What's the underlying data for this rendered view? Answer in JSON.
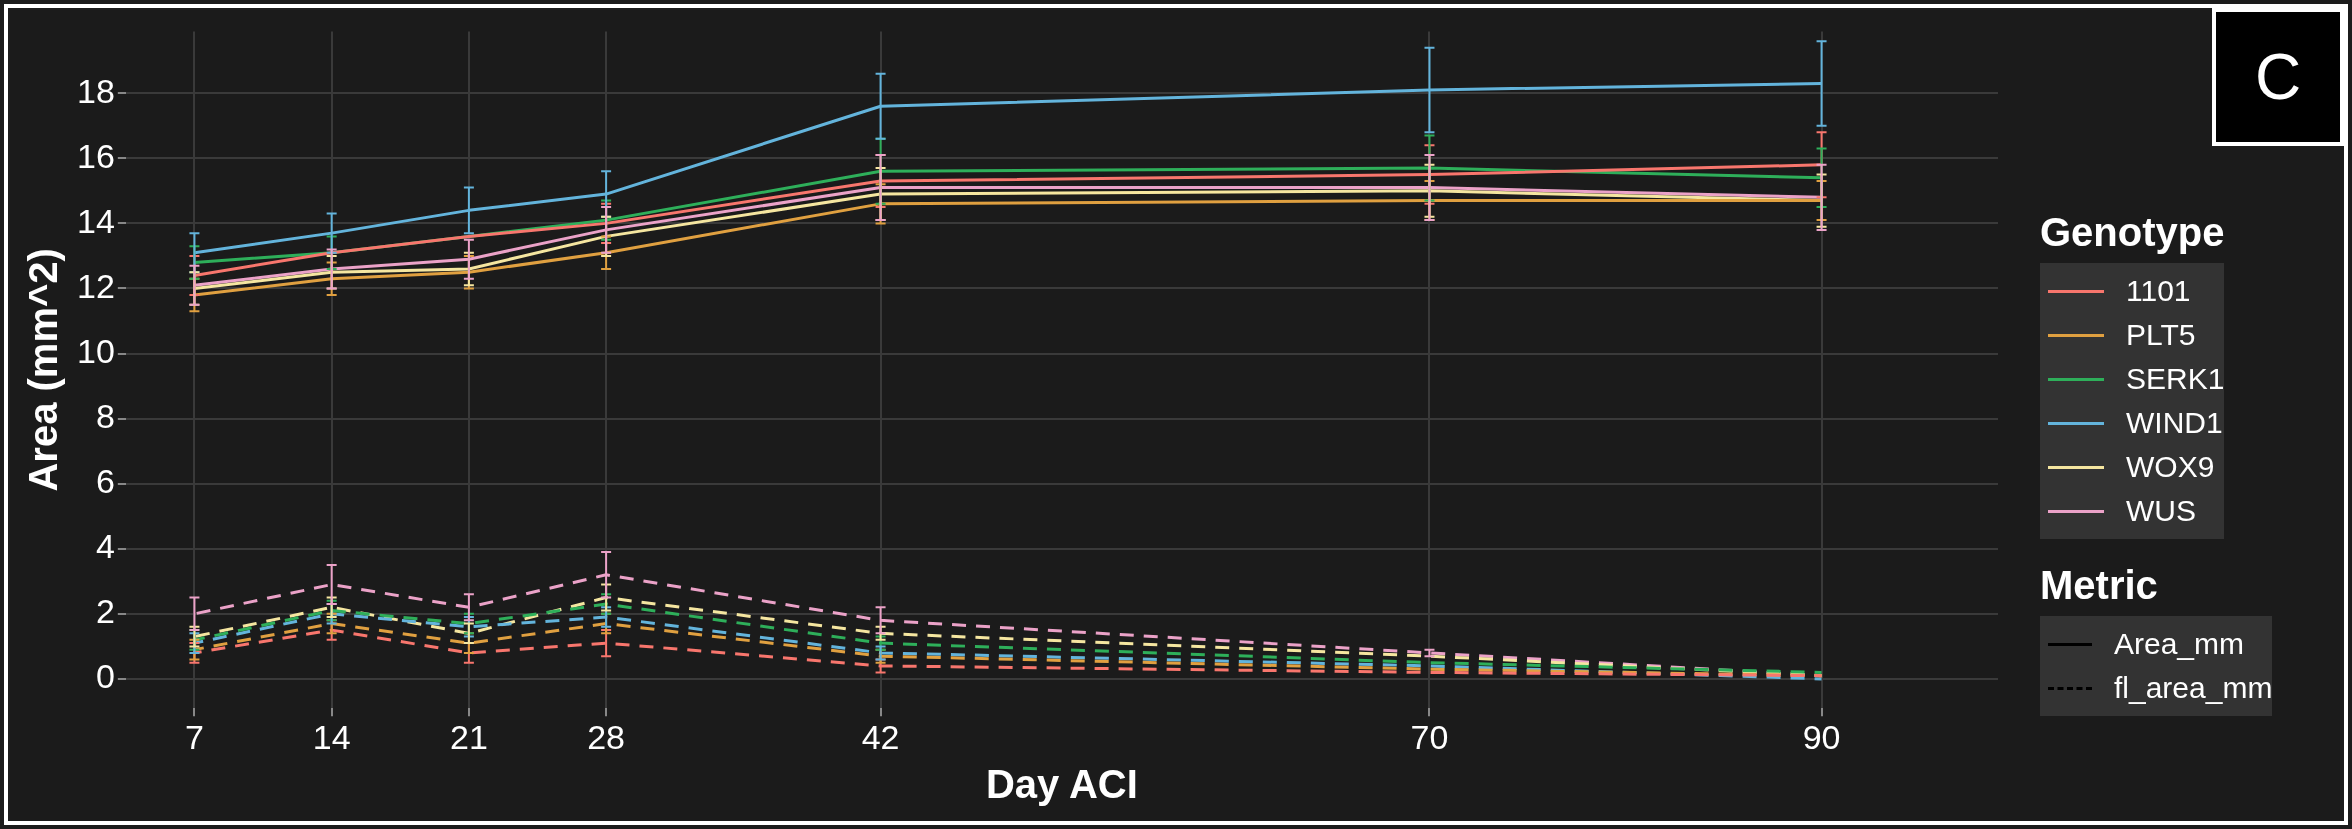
{
  "chart_data": {
    "type": "line",
    "xlabel": "Day ACI",
    "ylabel": "Area (mm^2)",
    "legend_title": "Genotype",
    "legend": "right",
    "grid": true,
    "marker": "none",
    "x": [
      7,
      14,
      21,
      28,
      42,
      70,
      90
    ],
    "xlim": [
      3.5,
      99
    ],
    "xticks": [
      7,
      14,
      21,
      28,
      42,
      70,
      90
    ],
    "ylim": [
      -0.9,
      19.9
    ],
    "yticks": [
      0,
      2,
      4,
      6,
      8,
      10,
      12,
      14,
      16,
      18
    ],
    "annotations": [
      "C",
      "Metric",
      "Area_mm",
      "fl_area_mm"
    ],
    "series": [
      {
        "name": "1101",
        "color": "#f8766d",
        "line_style": "solid",
        "values": [
          12.4,
          13.1,
          13.6,
          14.0,
          15.3,
          15.5,
          15.8
        ],
        "errors": [
          0.6,
          null,
          null,
          0.6,
          0.8,
          0.9,
          1.0
        ]
      },
      {
        "name": "PLT5",
        "color": "#e0a040",
        "line_style": "solid",
        "values": [
          11.8,
          12.3,
          12.5,
          13.1,
          14.6,
          14.7,
          14.7
        ],
        "errors": [
          0.5,
          0.5,
          0.5,
          0.5,
          0.6,
          0.6,
          0.6
        ]
      },
      {
        "name": "SERK1",
        "color": "#2eaf5a",
        "line_style": "solid",
        "values": [
          12.8,
          13.1,
          13.6,
          14.1,
          15.6,
          15.7,
          15.4
        ],
        "errors": [
          0.5,
          0.5,
          null,
          0.6,
          1.0,
          1.0,
          0.9
        ]
      },
      {
        "name": "WIND1",
        "color": "#63b4dc",
        "line_style": "solid",
        "values": [
          13.1,
          13.7,
          14.4,
          14.9,
          17.6,
          18.1,
          18.3
        ],
        "errors": [
          0.6,
          0.6,
          0.7,
          0.7,
          1.0,
          1.3,
          1.3
        ]
      },
      {
        "name": "WOX9",
        "color": "#f5e6a0",
        "line_style": "solid",
        "values": [
          12.0,
          12.5,
          12.6,
          13.6,
          14.9,
          15.0,
          14.7
        ],
        "errors": [
          0.5,
          0.5,
          0.5,
          0.6,
          0.8,
          0.8,
          0.8
        ]
      },
      {
        "name": "WUS",
        "color": "#eba2c8",
        "line_style": "solid",
        "values": [
          12.1,
          12.6,
          12.9,
          13.8,
          15.1,
          15.1,
          14.8
        ],
        "errors": [
          0.6,
          0.6,
          0.6,
          0.7,
          1.0,
          1.0,
          1.0
        ]
      },
      {
        "color": "#f8766d",
        "line_style": "dashed",
        "values": [
          0.8,
          1.5,
          0.8,
          1.1,
          0.4,
          0.2,
          0.1
        ],
        "errors": [
          0.3,
          0.3,
          0.3,
          0.4,
          0.2,
          null,
          null
        ]
      },
      {
        "color": "#e0a040",
        "line_style": "dashed",
        "values": [
          0.9,
          1.7,
          1.1,
          1.7,
          0.7,
          0.3,
          0.1
        ],
        "errors": [
          0.3,
          0.3,
          0.3,
          0.3,
          0.2,
          null,
          null
        ]
      },
      {
        "color": "#2eaf5a",
        "line_style": "dashed",
        "values": [
          1.2,
          2.1,
          1.7,
          2.3,
          1.1,
          0.5,
          0.2
        ],
        "errors": [
          0.3,
          0.3,
          0.3,
          0.3,
          0.2,
          null,
          null
        ]
      },
      {
        "color": "#63b4dc",
        "line_style": "dashed",
        "values": [
          1.1,
          2.0,
          1.6,
          1.9,
          0.8,
          0.4,
          0.0
        ],
        "errors": [
          0.3,
          0.3,
          0.3,
          0.3,
          0.2,
          null,
          null
        ]
      },
      {
        "color": "#f5e6a0",
        "line_style": "dashed",
        "values": [
          1.3,
          2.2,
          1.4,
          2.5,
          1.4,
          0.7,
          0.1
        ],
        "errors": [
          0.3,
          0.3,
          0.3,
          0.4,
          0.2,
          null,
          null
        ]
      },
      {
        "color": "#eba2c8",
        "line_style": "dashed",
        "values": [
          2.0,
          2.9,
          2.2,
          3.2,
          1.8,
          0.8,
          0.1
        ],
        "errors": [
          0.5,
          0.6,
          0.4,
          0.7,
          0.4,
          0.1,
          null
        ]
      }
    ]
  }
}
